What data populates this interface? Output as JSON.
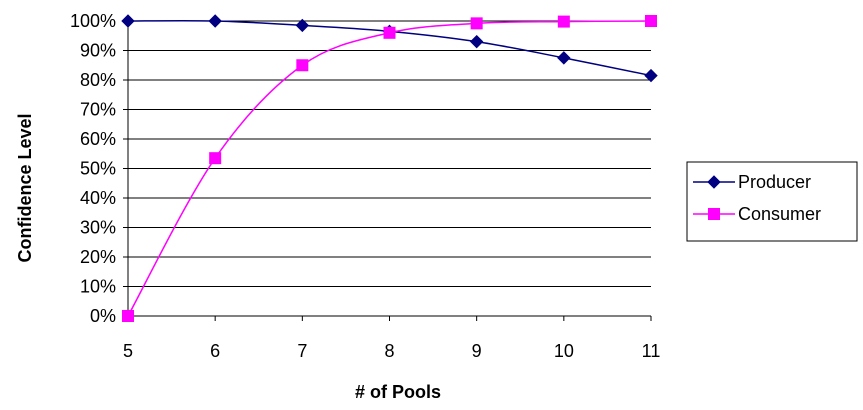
{
  "chart_data": {
    "type": "line",
    "xlabel": "# of Pools",
    "ylabel": "Confidence Level",
    "x": [
      5,
      6,
      7,
      8,
      9,
      10,
      11
    ],
    "xlim": [
      5,
      11
    ],
    "ylim": [
      0,
      100
    ],
    "y_ticks": [
      "0%",
      "10%",
      "20%",
      "30%",
      "40%",
      "50%",
      "60%",
      "70%",
      "80%",
      "90%",
      "100%"
    ],
    "x_ticks": [
      "5",
      "6",
      "7",
      "8",
      "9",
      "10",
      "11"
    ],
    "grid": "horizontal",
    "legend_position": "right",
    "series": [
      {
        "name": "Producer",
        "values": [
          100,
          100,
          98.5,
          96.5,
          93,
          87.5,
          81.5
        ],
        "color": "#000080",
        "marker": "diamond"
      },
      {
        "name": "Consumer",
        "values": [
          0,
          53.5,
          85,
          96,
          99.2,
          99.8,
          100
        ],
        "color": "#FF00FF",
        "marker": "square"
      }
    ]
  }
}
